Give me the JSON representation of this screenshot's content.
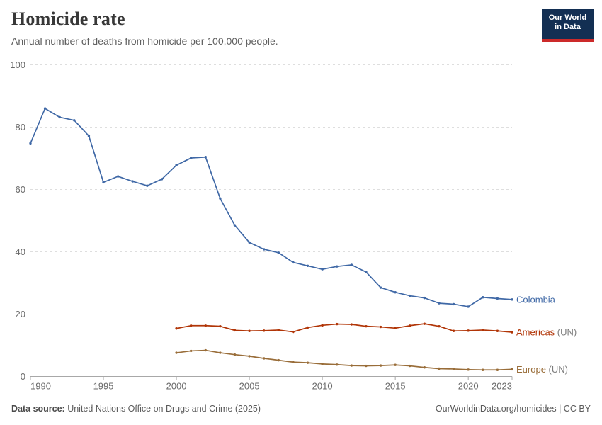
{
  "header": {
    "title": "Homicide rate",
    "subtitle": "Annual number of deaths from homicide per 100,000 people.",
    "logo": {
      "line1": "Our World",
      "line2": "in Data"
    }
  },
  "chart_data": {
    "type": "line",
    "title": "Homicide rate",
    "subtitle": "Annual number of deaths from homicide per 100,000 people.",
    "xlabel": "",
    "ylabel": "",
    "xlim": [
      1990,
      2023
    ],
    "ylim": [
      0,
      100
    ],
    "x_ticks": [
      1990,
      1995,
      2000,
      2005,
      2010,
      2015,
      2020,
      2023
    ],
    "y_ticks": [
      0,
      20,
      40,
      60,
      80,
      100
    ],
    "grid": "horizontal-dashed",
    "legend_position": "line-end-labels",
    "series": [
      {
        "name": "Colombia",
        "suffix": "",
        "color": "#3f68a6",
        "years": [
          1990,
          1991,
          1992,
          1993,
          1994,
          1995,
          1996,
          1997,
          1998,
          1999,
          2000,
          2001,
          2002,
          2003,
          2004,
          2005,
          2006,
          2007,
          2008,
          2009,
          2010,
          2011,
          2012,
          2013,
          2014,
          2015,
          2016,
          2017,
          2018,
          2019,
          2020,
          2021,
          2022,
          2023
        ],
        "values": [
          74.8,
          86.0,
          83.2,
          82.2,
          77.2,
          62.3,
          64.2,
          62.6,
          61.2,
          63.3,
          67.8,
          70.1,
          70.4,
          57.1,
          48.5,
          43.0,
          40.8,
          39.7,
          36.6,
          35.5,
          34.4,
          35.3,
          35.8,
          33.5,
          28.5,
          27.0,
          25.9,
          25.2,
          23.5,
          23.2,
          22.4,
          25.4,
          25.0,
          24.7
        ]
      },
      {
        "name": "Americas",
        "suffix": " (UN)",
        "color": "#b13507",
        "years": [
          2000,
          2001,
          2002,
          2003,
          2004,
          2005,
          2006,
          2007,
          2008,
          2009,
          2010,
          2011,
          2012,
          2013,
          2014,
          2015,
          2016,
          2017,
          2018,
          2019,
          2020,
          2021,
          2022,
          2023
        ],
        "values": [
          15.4,
          16.3,
          16.3,
          16.1,
          14.8,
          14.6,
          14.7,
          14.9,
          14.3,
          15.7,
          16.4,
          16.8,
          16.7,
          16.1,
          15.9,
          15.5,
          16.3,
          16.9,
          16.1,
          14.6,
          14.7,
          14.9,
          14.6,
          14.2
        ]
      },
      {
        "name": "Europe",
        "suffix": " (UN)",
        "color": "#996d39",
        "years": [
          2000,
          2001,
          2002,
          2003,
          2004,
          2005,
          2006,
          2007,
          2008,
          2009,
          2010,
          2011,
          2012,
          2013,
          2014,
          2015,
          2016,
          2017,
          2018,
          2019,
          2020,
          2021,
          2022,
          2023
        ],
        "values": [
          7.6,
          8.2,
          8.4,
          7.6,
          7.0,
          6.5,
          5.8,
          5.2,
          4.6,
          4.4,
          4.0,
          3.8,
          3.5,
          3.4,
          3.5,
          3.7,
          3.4,
          2.9,
          2.5,
          2.4,
          2.2,
          2.1,
          2.1,
          2.3
        ]
      }
    ]
  },
  "footer": {
    "source_label": "Data source:",
    "source_text": " United Nations Office on Drugs and Crime (2025)",
    "credit": "OurWorldinData.org/homicides | CC BY"
  },
  "colors": {
    "grid": "#dedede",
    "axis": "#a8a8a8",
    "tick_label": "#6a6a6a",
    "suffix_gray": "#7c7c7c",
    "logo_navy": "#132f53",
    "logo_red": "#cc2a2a"
  }
}
